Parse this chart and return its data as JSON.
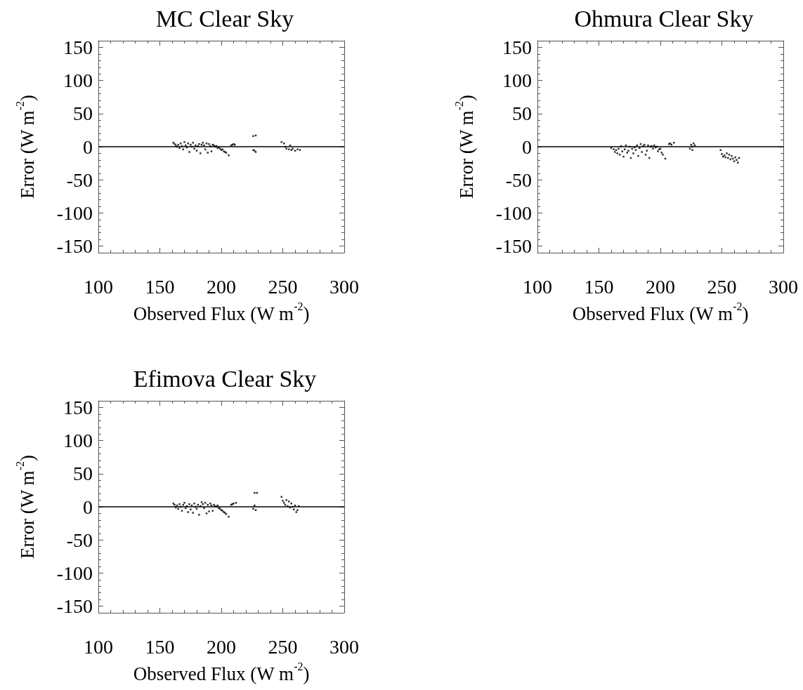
{
  "chart_data": [
    {
      "type": "scatter",
      "title": "MC Clear Sky",
      "xlabel": "Observed Flux (W m$^{-2}$)",
      "ylabel": "Error (W m$^{-2}$)",
      "color": "#000000",
      "marker": "square",
      "grid": false,
      "xlim": [
        100,
        300
      ],
      "xticks": [
        100,
        150,
        200,
        250,
        300
      ],
      "ylim": [
        -160,
        160
      ],
      "yticks": [
        -150,
        -100,
        -50,
        0,
        50,
        100,
        150
      ],
      "ref_lines": [
        {
          "axis": "y",
          "value": 0,
          "color": "#000000",
          "line_style": "solid"
        }
      ],
      "x": [
        161,
        162,
        163,
        164,
        165,
        166,
        167,
        168,
        169,
        170,
        171,
        172,
        173,
        174,
        175,
        176,
        177,
        178,
        179,
        180,
        181,
        182,
        183,
        184,
        185,
        186,
        187,
        188,
        189,
        190,
        191,
        192,
        193,
        194,
        195,
        196,
        197,
        198,
        199,
        200,
        201,
        202,
        203,
        204,
        206,
        208,
        209,
        210,
        211,
        226,
        228,
        227,
        228,
        226,
        249,
        251,
        252,
        253,
        255,
        256,
        257,
        258,
        260,
        262,
        264
      ],
      "values": [
        6,
        4,
        2,
        0,
        3,
        -2,
        5,
        1,
        -4,
        7,
        2,
        -1,
        5,
        -8,
        3,
        0,
        6,
        -3,
        2,
        -6,
        1,
        4,
        -10,
        3,
        6,
        2,
        -4,
        5,
        -9,
        4,
        1,
        -7,
        3,
        2,
        0,
        1,
        -2,
        -1,
        -3,
        -5,
        -4,
        -7,
        -8,
        -9,
        -13,
        2,
        3,
        4,
        3,
        16,
        17,
        -6,
        -8,
        -5,
        7,
        5,
        0,
        -3,
        -4,
        2,
        -5,
        -3,
        -6,
        -4,
        -5
      ]
    },
    {
      "type": "scatter",
      "title": "Ohmura Clear Sky",
      "xlabel": "Observed Flux (W m$^{-2}$)",
      "ylabel": "Error (W m$^{-2}$)",
      "color": "#000000",
      "marker": "square",
      "grid": false,
      "xlim": [
        100,
        300
      ],
      "xticks": [
        100,
        150,
        200,
        250,
        300
      ],
      "ylim": [
        -160,
        160
      ],
      "yticks": [
        -150,
        -100,
        -50,
        0,
        50,
        100,
        150
      ],
      "ref_lines": [
        {
          "axis": "y",
          "value": 0,
          "color": "#000000",
          "line_style": "solid"
        }
      ],
      "x": [
        160,
        162,
        163,
        164,
        165,
        166,
        167,
        168,
        169,
        170,
        171,
        172,
        173,
        174,
        175,
        176,
        177,
        178,
        179,
        180,
        181,
        182,
        183,
        184,
        185,
        186,
        187,
        188,
        189,
        190,
        191,
        192,
        193,
        194,
        195,
        196,
        197,
        198,
        199,
        200,
        201,
        202,
        204,
        207,
        208,
        209,
        211,
        224,
        225,
        226,
        227,
        226,
        228,
        249,
        250,
        251,
        252,
        253,
        254,
        255,
        256,
        257,
        258,
        259,
        260,
        261,
        262,
        263,
        264
      ],
      "values": [
        -2,
        -4,
        -8,
        -5,
        -10,
        -3,
        -12,
        1,
        -7,
        -15,
        -4,
        2,
        -9,
        -6,
        0,
        -17,
        -3,
        -10,
        -1,
        -5,
        2,
        -14,
        -2,
        4,
        -8,
        1,
        3,
        -12,
        -6,
        2,
        -17,
        0,
        1,
        -3,
        2,
        -1,
        0,
        -7,
        -4,
        -3,
        -9,
        -12,
        -18,
        4,
        5,
        3,
        6,
        -3,
        3,
        -5,
        5,
        0,
        2,
        -5,
        -11,
        -15,
        -13,
        -16,
        -10,
        -17,
        -12,
        -19,
        -14,
        -18,
        -22,
        -16,
        -20,
        -24,
        -17
      ]
    },
    {
      "type": "scatter",
      "title": "Efimova Clear Sky",
      "xlabel": "Observed Flux (W m$^{-2}$)",
      "ylabel": "Error (W m$^{-2}$)",
      "color": "#000000",
      "marker": "square",
      "grid": false,
      "xlim": [
        100,
        300
      ],
      "xticks": [
        100,
        150,
        200,
        250,
        300
      ],
      "ylim": [
        -160,
        160
      ],
      "yticks": [
        -150,
        -100,
        -50,
        0,
        50,
        100,
        150
      ],
      "ref_lines": [
        {
          "axis": "y",
          "value": 0,
          "color": "#000000",
          "line_style": "solid"
        }
      ],
      "x": [
        161,
        162,
        163,
        164,
        165,
        166,
        167,
        168,
        169,
        170,
        171,
        172,
        173,
        174,
        175,
        176,
        177,
        178,
        179,
        180,
        181,
        182,
        183,
        184,
        185,
        186,
        187,
        188,
        189,
        190,
        191,
        192,
        193,
        194,
        195,
        196,
        197,
        198,
        199,
        200,
        201,
        202,
        203,
        204,
        206,
        208,
        209,
        210,
        212,
        227,
        229,
        226,
        227,
        228,
        249,
        250,
        251,
        252,
        253,
        254,
        255,
        256,
        257,
        258,
        259,
        260,
        261,
        262,
        263
      ],
      "values": [
        5,
        3,
        -1,
        2,
        -3,
        4,
        0,
        -6,
        3,
        6,
        -2,
        1,
        -8,
        4,
        -4,
        2,
        -9,
        5,
        0,
        -3,
        3,
        -12,
        1,
        7,
        4,
        -2,
        6,
        -10,
        3,
        -7,
        5,
        2,
        -6,
        3,
        1,
        0,
        2,
        -2,
        -3,
        -5,
        -6,
        -8,
        -9,
        -11,
        -15,
        3,
        4,
        5,
        6,
        21,
        21,
        -3,
        2,
        -5,
        15,
        9,
        6,
        3,
        10,
        1,
        8,
        -1,
        5,
        0,
        -4,
        2,
        -8,
        -5,
        1
      ]
    }
  ]
}
